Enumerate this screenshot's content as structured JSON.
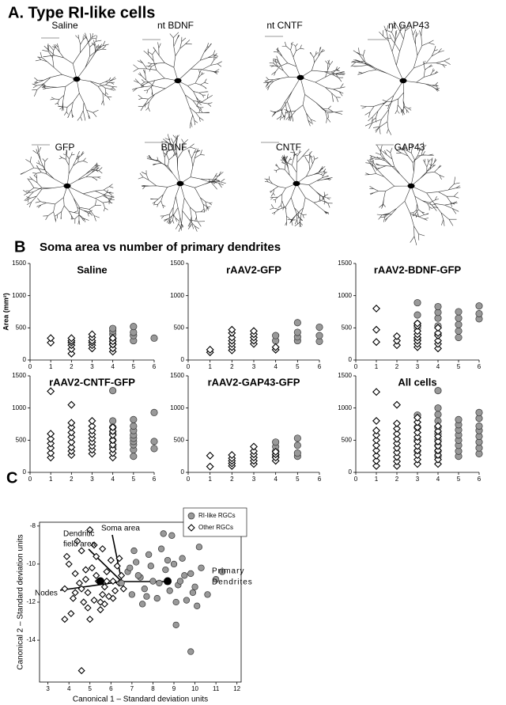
{
  "panel_a": {
    "title": "A. Type RI-like cells",
    "cells": [
      "Saline",
      "nt BDNF",
      "nt CNTF",
      "nt GAP43",
      "GFP",
      "BDNF",
      "CNTF",
      "GAP43"
    ]
  },
  "panel_b": {
    "label": "B",
    "title": "Soma area vs number of primary dendrites"
  },
  "panel_c": {
    "label": "C"
  },
  "chart_data": [
    {
      "type": "scatter",
      "title": "Saline",
      "ylabel": "Area (mm²)",
      "xlim": [
        0,
        6
      ],
      "xticks": [
        0,
        1,
        2,
        3,
        4,
        5,
        6
      ],
      "ylim": [
        0,
        1500
      ],
      "yticks": [
        0,
        500,
        1000,
        1500
      ],
      "series": [
        {
          "marker": "diamond",
          "color": "#ffffff",
          "x": [
            1,
            1,
            2,
            2,
            2,
            2,
            2,
            2,
            3,
            3,
            3,
            3,
            3,
            3,
            4,
            4,
            4,
            4,
            4
          ],
          "values": [
            270,
            340,
            100,
            170,
            230,
            270,
            300,
            340,
            180,
            230,
            270,
            300,
            350,
            400,
            130,
            180,
            240,
            290,
            340
          ]
        },
        {
          "marker": "circle",
          "color": "#999999",
          "x": [
            4,
            4,
            4,
            4,
            4,
            5,
            5,
            5,
            5,
            6
          ],
          "values": [
            250,
            330,
            400,
            450,
            490,
            300,
            380,
            430,
            520,
            340
          ]
        }
      ]
    },
    {
      "type": "scatter",
      "title": "rAAV2-GFP",
      "xlim": [
        0,
        6
      ],
      "xticks": [
        0,
        1,
        2,
        3,
        4,
        5,
        6
      ],
      "ylim": [
        0,
        1500
      ],
      "yticks": [
        0,
        500,
        1000,
        1500
      ],
      "series": [
        {
          "marker": "diamond",
          "color": "#ffffff",
          "x": [
            1,
            1,
            2,
            2,
            2,
            2,
            2,
            2,
            2,
            3,
            3,
            3,
            3,
            3,
            4,
            4
          ],
          "values": [
            120,
            160,
            150,
            200,
            250,
            300,
            350,
            420,
            470,
            250,
            300,
            350,
            400,
            450,
            160,
            200
          ]
        },
        {
          "marker": "circle",
          "color": "#999999",
          "x": [
            4,
            4,
            5,
            5,
            5,
            5,
            6,
            6,
            6
          ],
          "values": [
            300,
            380,
            300,
            360,
            430,
            580,
            290,
            380,
            510
          ]
        }
      ]
    },
    {
      "type": "scatter",
      "title": "rAAV2-BDNF-GFP",
      "xlim": [
        0,
        6
      ],
      "xticks": [
        0,
        1,
        2,
        3,
        4,
        5,
        6
      ],
      "ylim": [
        0,
        1500
      ],
      "yticks": [
        0,
        500,
        1000,
        1500
      ],
      "series": [
        {
          "marker": "diamond",
          "color": "#ffffff",
          "x": [
            1,
            1,
            1,
            2,
            2,
            2,
            3,
            3,
            3,
            3,
            3,
            3,
            3,
            3,
            4,
            4,
            4,
            4,
            4,
            4
          ],
          "values": [
            280,
            470,
            800,
            230,
            300,
            370,
            200,
            250,
            300,
            350,
            400,
            450,
            530,
            570,
            180,
            250,
            300,
            380,
            420,
            500
          ]
        },
        {
          "marker": "circle",
          "color": "#999999",
          "x": [
            3,
            3,
            3,
            3,
            3,
            4,
            4,
            4,
            4,
            4,
            5,
            5,
            5,
            5,
            5,
            6,
            6,
            6
          ],
          "values": [
            330,
            500,
            560,
            700,
            890,
            400,
            530,
            650,
            740,
            830,
            350,
            450,
            550,
            650,
            750,
            640,
            720,
            840
          ]
        }
      ]
    },
    {
      "type": "scatter",
      "title": "rAAV2-CNTF-GFP",
      "xlim": [
        0,
        6
      ],
      "xticks": [
        0,
        1,
        2,
        3,
        4,
        5,
        6
      ],
      "ylim": [
        0,
        1500
      ],
      "yticks": [
        0,
        500,
        1000,
        1500
      ],
      "series": [
        {
          "marker": "diamond",
          "color": "#ffffff",
          "x": [
            1,
            1,
            1,
            1,
            1,
            1,
            1,
            2,
            2,
            2,
            2,
            2,
            2,
            2,
            2,
            2,
            3,
            3,
            3,
            3,
            3,
            3,
            3,
            3,
            3,
            4,
            4,
            4,
            4,
            4,
            4,
            4,
            4
          ],
          "values": [
            230,
            300,
            380,
            450,
            520,
            600,
            1260,
            270,
            330,
            390,
            470,
            550,
            620,
            700,
            770,
            1050,
            290,
            350,
            410,
            470,
            530,
            590,
            650,
            720,
            800,
            230,
            300,
            360,
            430,
            500,
            580,
            640,
            700
          ]
        },
        {
          "marker": "circle",
          "color": "#999999",
          "x": [
            4,
            4,
            4,
            4,
            4,
            4,
            5,
            5,
            5,
            5,
            5,
            5,
            5,
            5,
            5,
            6,
            6,
            6
          ],
          "values": [
            400,
            500,
            600,
            700,
            800,
            1270,
            250,
            350,
            430,
            480,
            530,
            580,
            650,
            720,
            820,
            370,
            480,
            930
          ]
        }
      ]
    },
    {
      "type": "scatter",
      "title": "rAAV2-GAP43-GFP",
      "xlim": [
        0,
        6
      ],
      "xticks": [
        0,
        1,
        2,
        3,
        4,
        5,
        6
      ],
      "ylim": [
        0,
        1500
      ],
      "yticks": [
        0,
        500,
        1000,
        1500
      ],
      "series": [
        {
          "marker": "diamond",
          "color": "#ffffff",
          "x": [
            1,
            1,
            2,
            2,
            2,
            2,
            2,
            3,
            3,
            3,
            3,
            3,
            3,
            4,
            4,
            4,
            4
          ],
          "values": [
            90,
            260,
            100,
            140,
            180,
            220,
            270,
            130,
            180,
            230,
            280,
            330,
            400,
            180,
            230,
            280,
            320
          ]
        },
        {
          "marker": "circle",
          "color": "#999999",
          "x": [
            4,
            4,
            4,
            4,
            5,
            5,
            5,
            5
          ],
          "values": [
            250,
            330,
            400,
            470,
            250,
            300,
            420,
            530
          ]
        }
      ]
    },
    {
      "type": "scatter",
      "title": "All cells",
      "xlim": [
        0,
        6
      ],
      "xticks": [
        0,
        1,
        2,
        3,
        4,
        5,
        6
      ],
      "ylim": [
        0,
        1500
      ],
      "yticks": [
        0,
        500,
        1000,
        1500
      ],
      "series": [
        {
          "marker": "diamond",
          "color": "#ffffff",
          "x": [
            1,
            1,
            1,
            1,
            1,
            1,
            1,
            1,
            1,
            1,
            2,
            2,
            2,
            2,
            2,
            2,
            2,
            2,
            2,
            2,
            2,
            3,
            3,
            3,
            3,
            3,
            3,
            3,
            3,
            3,
            3,
            3,
            4,
            4,
            4,
            4,
            4,
            4,
            4,
            4,
            4
          ],
          "values": [
            100,
            180,
            260,
            340,
            420,
            500,
            580,
            650,
            800,
            1250,
            100,
            170,
            240,
            310,
            380,
            450,
            520,
            600,
            680,
            760,
            1050,
            130,
            200,
            270,
            340,
            410,
            480,
            550,
            620,
            700,
            780,
            850,
            130,
            200,
            270,
            340,
            410,
            480,
            560,
            640,
            720
          ]
        },
        {
          "marker": "circle",
          "color": "#999999",
          "x": [
            3,
            3,
            3,
            3,
            4,
            4,
            4,
            4,
            4,
            4,
            4,
            4,
            4,
            4,
            5,
            5,
            5,
            5,
            5,
            5,
            5,
            5,
            6,
            6,
            6,
            6,
            6,
            6,
            6,
            6
          ],
          "values": [
            330,
            500,
            700,
            890,
            250,
            330,
            420,
            510,
            600,
            700,
            800,
            900,
            1000,
            1270,
            250,
            330,
            420,
            500,
            580,
            660,
            740,
            820,
            290,
            380,
            470,
            560,
            650,
            720,
            840,
            930
          ]
        }
      ]
    },
    {
      "type": "scatter",
      "frame": true,
      "legend": "top-right",
      "xlabel": "Canonical 1 – Standard deviation units",
      "ylabel": "Canonical 2 – Standard deviation units",
      "xlim": [
        2.6,
        12.2
      ],
      "xticks": [
        3,
        4,
        5,
        6,
        7,
        8,
        9,
        10,
        11,
        12
      ],
      "ylim": [
        -16.2,
        -7.8
      ],
      "yticks": [
        -8,
        -10,
        -12,
        -14
      ],
      "annotations": [
        "Soma area",
        "Dendritic",
        "field area",
        "Nodes",
        "Primary",
        "Dendrites"
      ],
      "series": [
        {
          "name": "RI-like RGCs",
          "marker": "circle",
          "color": "#999999",
          "x": [
            6.5,
            6.8,
            7.0,
            7.2,
            7.4,
            7.6,
            7.8,
            8.0,
            8.2,
            8.4,
            8.6,
            8.8,
            9.0,
            9.2,
            9.4,
            9.6,
            9.8,
            10.0,
            10.3,
            10.6,
            11.0,
            11.3,
            7.1,
            7.5,
            7.9,
            8.3,
            8.7,
            9.1,
            9.5,
            9.9,
            10.2,
            6.9,
            7.7,
            8.5,
            9.3,
            10.1,
            8.9,
            9.1,
            9.8,
            7.3
          ],
          "values": [
            -11.0,
            -10.4,
            -11.6,
            -9.9,
            -10.7,
            -11.3,
            -9.5,
            -10.9,
            -11.8,
            -9.2,
            -10.3,
            -11.4,
            -10.0,
            -11.1,
            -9.7,
            -11.9,
            -10.5,
            -11.2,
            -10.2,
            -11.6,
            -10.8,
            -10.4,
            -9.3,
            -12.1,
            -10.1,
            -11.0,
            -9.8,
            -12.0,
            -10.6,
            -11.5,
            -9.1,
            -10.2,
            -11.7,
            -8.4,
            -10.9,
            -12.2,
            -8.5,
            -13.2,
            -14.6,
            -10.6
          ]
        },
        {
          "name": "Other RGCs",
          "marker": "diamond",
          "color": "#ffffff",
          "x": [
            3.8,
            4.0,
            4.2,
            4.3,
            4.5,
            4.6,
            4.7,
            4.8,
            4.9,
            5.0,
            5.1,
            5.2,
            5.3,
            5.4,
            5.5,
            5.6,
            5.7,
            5.8,
            5.9,
            6.0,
            6.1,
            6.2,
            6.3,
            6.4,
            6.5,
            6.6,
            4.1,
            4.4,
            4.9,
            5.3,
            5.7,
            6.1,
            3.9,
            4.6,
            5.2,
            5.8,
            6.4,
            4.3,
            5.0,
            5.6,
            4.8,
            4.6,
            3.8,
            5.5
          ],
          "values": [
            -11.3,
            -10.0,
            -11.8,
            -10.5,
            -11.0,
            -9.3,
            -12.0,
            -10.8,
            -11.5,
            -8.2,
            -10.2,
            -11.9,
            -9.6,
            -10.9,
            -12.4,
            -9.2,
            -11.2,
            -10.4,
            -11.7,
            -9.8,
            -10.9,
            -11.4,
            -10.1,
            -11.0,
            -10.6,
            -11.3,
            -12.6,
            -8.8,
            -12.3,
            -10.6,
            -12.1,
            -11.8,
            -9.6,
            -11.3,
            -9.0,
            -10.9,
            -9.7,
            -11.5,
            -12.9,
            -11.6,
            -10.3,
            -15.6,
            -12.9,
            -12.0
          ]
        }
      ],
      "centroids": {
        "x": [
          5.5,
          8.7
        ],
        "y": [
          -10.9,
          -10.9
        ]
      }
    }
  ]
}
